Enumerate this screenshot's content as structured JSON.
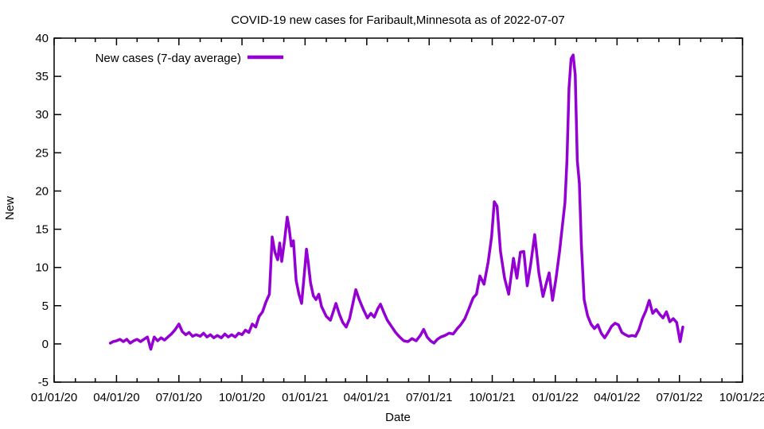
{
  "window": {
    "background": "#ffffff"
  },
  "chart_data": {
    "type": "line",
    "title": "COVID-19 new cases for Faribault,Minnesota as of 2022-07-07",
    "xlabel": "Date",
    "ylabel": "New",
    "legend": "New cases (7-day average)",
    "legend_position": "top-left-inside",
    "grid": false,
    "line_color": "#9400d3",
    "axis_color": "#000000",
    "ylim": [
      -5,
      40
    ],
    "xlim": [
      "2020-01-01",
      "2022-10-01"
    ],
    "y_ticks": [
      -5,
      0,
      5,
      10,
      15,
      20,
      25,
      30,
      35,
      40
    ],
    "x_tick_labels": [
      "01/01/20",
      "04/01/20",
      "07/01/20",
      "10/01/20",
      "01/01/21",
      "04/01/21",
      "07/01/21",
      "10/01/21",
      "01/01/22",
      "04/01/22",
      "07/01/22",
      "10/01/22"
    ],
    "x_minor_tick_interval": "1 month",
    "series": [
      {
        "name": "New cases (7-day average)",
        "points": [
          [
            "2020-03-23",
            0.1
          ],
          [
            "2020-03-27",
            0.3
          ],
          [
            "2020-04-01",
            0.4
          ],
          [
            "2020-04-06",
            0.6
          ],
          [
            "2020-04-11",
            0.3
          ],
          [
            "2020-04-16",
            0.6
          ],
          [
            "2020-04-21",
            0.1
          ],
          [
            "2020-04-26",
            0.4
          ],
          [
            "2020-05-01",
            0.6
          ],
          [
            "2020-05-06",
            0.3
          ],
          [
            "2020-05-11",
            0.6
          ],
          [
            "2020-05-16",
            0.9
          ],
          [
            "2020-05-21",
            -0.7
          ],
          [
            "2020-05-26",
            0.9
          ],
          [
            "2020-05-31",
            0.4
          ],
          [
            "2020-06-05",
            0.8
          ],
          [
            "2020-06-10",
            0.5
          ],
          [
            "2020-06-15",
            0.9
          ],
          [
            "2020-06-20",
            1.3
          ],
          [
            "2020-06-25",
            1.8
          ],
          [
            "2020-07-01",
            2.6
          ],
          [
            "2020-07-06",
            1.6
          ],
          [
            "2020-07-11",
            1.2
          ],
          [
            "2020-07-16",
            1.5
          ],
          [
            "2020-07-21",
            1.0
          ],
          [
            "2020-07-26",
            1.2
          ],
          [
            "2020-08-01",
            1.0
          ],
          [
            "2020-08-06",
            1.4
          ],
          [
            "2020-08-11",
            0.9
          ],
          [
            "2020-08-16",
            1.2
          ],
          [
            "2020-08-21",
            0.8
          ],
          [
            "2020-08-26",
            1.1
          ],
          [
            "2020-09-01",
            0.8
          ],
          [
            "2020-09-06",
            1.3
          ],
          [
            "2020-09-11",
            0.9
          ],
          [
            "2020-09-16",
            1.2
          ],
          [
            "2020-09-21",
            0.9
          ],
          [
            "2020-09-26",
            1.4
          ],
          [
            "2020-10-01",
            1.2
          ],
          [
            "2020-10-06",
            1.8
          ],
          [
            "2020-10-11",
            1.5
          ],
          [
            "2020-10-16",
            2.6
          ],
          [
            "2020-10-21",
            2.2
          ],
          [
            "2020-10-26",
            3.6
          ],
          [
            "2020-10-31",
            4.2
          ],
          [
            "2020-11-05",
            5.5
          ],
          [
            "2020-11-10",
            6.5
          ],
          [
            "2020-11-14",
            14.0
          ],
          [
            "2020-11-18",
            12.0
          ],
          [
            "2020-11-22",
            11.0
          ],
          [
            "2020-11-25",
            13.2
          ],
          [
            "2020-11-28",
            10.8
          ],
          [
            "2020-12-02",
            13.5
          ],
          [
            "2020-12-06",
            16.6
          ],
          [
            "2020-12-09",
            15.0
          ],
          [
            "2020-12-12",
            12.8
          ],
          [
            "2020-12-15",
            13.5
          ],
          [
            "2020-12-19",
            8.3
          ],
          [
            "2020-12-23",
            6.5
          ],
          [
            "2020-12-27",
            5.3
          ],
          [
            "2020-12-31",
            9.3
          ],
          [
            "2021-01-03",
            12.4
          ],
          [
            "2021-01-06",
            10.4
          ],
          [
            "2021-01-09",
            8.0
          ],
          [
            "2021-01-13",
            6.3
          ],
          [
            "2021-01-17",
            5.8
          ],
          [
            "2021-01-21",
            6.5
          ],
          [
            "2021-01-25",
            4.9
          ],
          [
            "2021-02-01",
            3.6
          ],
          [
            "2021-02-07",
            3.1
          ],
          [
            "2021-02-11",
            4.2
          ],
          [
            "2021-02-15",
            5.3
          ],
          [
            "2021-02-20",
            3.9
          ],
          [
            "2021-02-25",
            2.8
          ],
          [
            "2021-03-02",
            2.2
          ],
          [
            "2021-03-07",
            3.3
          ],
          [
            "2021-03-11",
            5.0
          ],
          [
            "2021-03-16",
            7.1
          ],
          [
            "2021-03-21",
            5.8
          ],
          [
            "2021-03-27",
            4.5
          ],
          [
            "2021-04-02",
            3.4
          ],
          [
            "2021-04-07",
            4.0
          ],
          [
            "2021-04-12",
            3.5
          ],
          [
            "2021-04-17",
            4.6
          ],
          [
            "2021-04-21",
            5.2
          ],
          [
            "2021-04-26",
            4.1
          ],
          [
            "2021-05-01",
            3.1
          ],
          [
            "2021-05-07",
            2.3
          ],
          [
            "2021-05-13",
            1.5
          ],
          [
            "2021-05-19",
            0.9
          ],
          [
            "2021-05-25",
            0.4
          ],
          [
            "2021-05-31",
            0.3
          ],
          [
            "2021-06-06",
            0.7
          ],
          [
            "2021-06-12",
            0.4
          ],
          [
            "2021-06-18",
            1.1
          ],
          [
            "2021-06-23",
            1.9
          ],
          [
            "2021-06-28",
            0.9
          ],
          [
            "2021-07-03",
            0.4
          ],
          [
            "2021-07-08",
            0.1
          ],
          [
            "2021-07-13",
            0.6
          ],
          [
            "2021-07-18",
            0.9
          ],
          [
            "2021-07-24",
            1.1
          ],
          [
            "2021-07-30",
            1.4
          ],
          [
            "2021-08-05",
            1.3
          ],
          [
            "2021-08-11",
            2.0
          ],
          [
            "2021-08-16",
            2.5
          ],
          [
            "2021-08-22",
            3.3
          ],
          [
            "2021-08-28",
            4.6
          ],
          [
            "2021-09-03",
            6.0
          ],
          [
            "2021-09-08",
            6.5
          ],
          [
            "2021-09-13",
            8.9
          ],
          [
            "2021-09-19",
            7.8
          ],
          [
            "2021-09-25",
            10.7
          ],
          [
            "2021-09-30",
            14.0
          ],
          [
            "2021-10-04",
            18.6
          ],
          [
            "2021-10-08",
            18.0
          ],
          [
            "2021-10-13",
            12.1
          ],
          [
            "2021-10-19",
            8.6
          ],
          [
            "2021-10-25",
            6.5
          ],
          [
            "2021-11-01",
            11.2
          ],
          [
            "2021-11-06",
            8.6
          ],
          [
            "2021-11-11",
            12.0
          ],
          [
            "2021-11-16",
            12.1
          ],
          [
            "2021-11-21",
            7.6
          ],
          [
            "2021-11-26",
            10.4
          ],
          [
            "2021-12-02",
            14.3
          ],
          [
            "2021-12-08",
            9.3
          ],
          [
            "2021-12-14",
            6.2
          ],
          [
            "2021-12-19",
            8.0
          ],
          [
            "2021-12-23",
            9.3
          ],
          [
            "2021-12-28",
            5.7
          ],
          [
            "2022-01-02",
            8.6
          ],
          [
            "2022-01-07",
            12.0
          ],
          [
            "2022-01-11",
            15.2
          ],
          [
            "2022-01-15",
            18.5
          ],
          [
            "2022-01-18",
            24.0
          ],
          [
            "2022-01-21",
            33.5
          ],
          [
            "2022-01-24",
            37.3
          ],
          [
            "2022-01-27",
            37.8
          ],
          [
            "2022-01-30",
            35.2
          ],
          [
            "2022-02-02",
            24.0
          ],
          [
            "2022-02-05",
            21.0
          ],
          [
            "2022-02-08",
            13.0
          ],
          [
            "2022-02-12",
            5.8
          ],
          [
            "2022-02-17",
            3.7
          ],
          [
            "2022-02-22",
            2.6
          ],
          [
            "2022-02-27",
            2.0
          ],
          [
            "2022-03-04",
            2.5
          ],
          [
            "2022-03-09",
            1.4
          ],
          [
            "2022-03-14",
            0.8
          ],
          [
            "2022-03-19",
            1.5
          ],
          [
            "2022-03-24",
            2.3
          ],
          [
            "2022-03-29",
            2.7
          ],
          [
            "2022-04-03",
            2.5
          ],
          [
            "2022-04-08",
            1.5
          ],
          [
            "2022-04-13",
            1.2
          ],
          [
            "2022-04-18",
            1.0
          ],
          [
            "2022-04-23",
            1.1
          ],
          [
            "2022-04-28",
            1.0
          ],
          [
            "2022-05-03",
            1.9
          ],
          [
            "2022-05-08",
            3.3
          ],
          [
            "2022-05-13",
            4.3
          ],
          [
            "2022-05-18",
            5.7
          ],
          [
            "2022-05-23",
            4.0
          ],
          [
            "2022-05-28",
            4.5
          ],
          [
            "2022-06-02",
            3.9
          ],
          [
            "2022-06-07",
            3.4
          ],
          [
            "2022-06-12",
            4.2
          ],
          [
            "2022-06-17",
            2.9
          ],
          [
            "2022-06-22",
            3.3
          ],
          [
            "2022-06-27",
            2.8
          ],
          [
            "2022-07-02",
            0.3
          ],
          [
            "2022-07-06",
            2.2
          ]
        ]
      }
    ]
  }
}
